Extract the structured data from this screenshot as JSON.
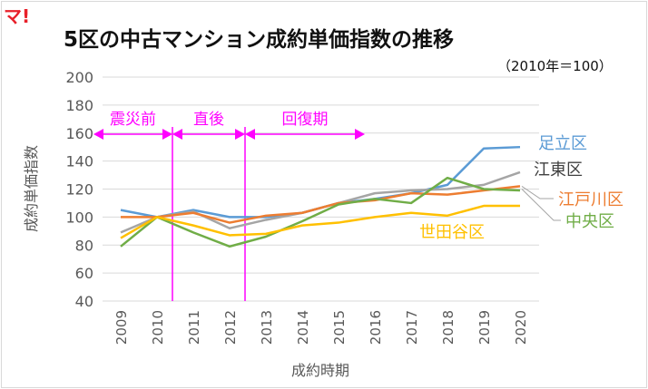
{
  "logo": "マ!",
  "chart_data": {
    "type": "line",
    "title": "5区の中古マンション成約単価指数の推移",
    "subtitle": "（2010年＝100）",
    "xlabel": "成約時期",
    "ylabel": "成約単価指数",
    "ylim": [
      40,
      200
    ],
    "yticks": [
      40,
      60,
      80,
      100,
      120,
      140,
      160,
      180,
      200
    ],
    "categories": [
      "2009",
      "2010",
      "2011",
      "2012",
      "2013",
      "2014",
      "2015",
      "2016",
      "2017",
      "2018",
      "2019",
      "2020"
    ],
    "grid": true,
    "series": [
      {
        "name": "足立区",
        "color": "#5b9bd5",
        "values": [
          105,
          100,
          105,
          100,
          100,
          103,
          110,
          113,
          117,
          123,
          149,
          150
        ]
      },
      {
        "name": "江東区",
        "color": "#a5a5a5",
        "values": [
          89,
          100,
          104,
          92,
          98,
          103,
          110,
          117,
          119,
          120,
          123,
          132
        ]
      },
      {
        "name": "江戸川区",
        "color": "#ed7d31",
        "values": [
          100,
          100,
          103,
          96,
          101,
          103,
          110,
          112,
          117,
          116,
          119,
          122
        ]
      },
      {
        "name": "中央区",
        "color": "#70ad47",
        "values": [
          79,
          100,
          89,
          79,
          86,
          97,
          109,
          113,
          110,
          128,
          120,
          119
        ]
      },
      {
        "name": "世田谷区",
        "color": "#ffc000",
        "values": [
          85,
          100,
          94,
          87,
          88,
          94,
          96,
          100,
          103,
          101,
          108,
          108
        ]
      }
    ],
    "annotations": [
      {
        "label": "震災前",
        "from": "2009",
        "to": "2010.5"
      },
      {
        "label": "直後",
        "from": "2010.5",
        "to": "2012.5"
      },
      {
        "label": "回復期",
        "from": "2012.5",
        "to": "2016"
      }
    ],
    "annotation_color": "#ff00ff"
  }
}
